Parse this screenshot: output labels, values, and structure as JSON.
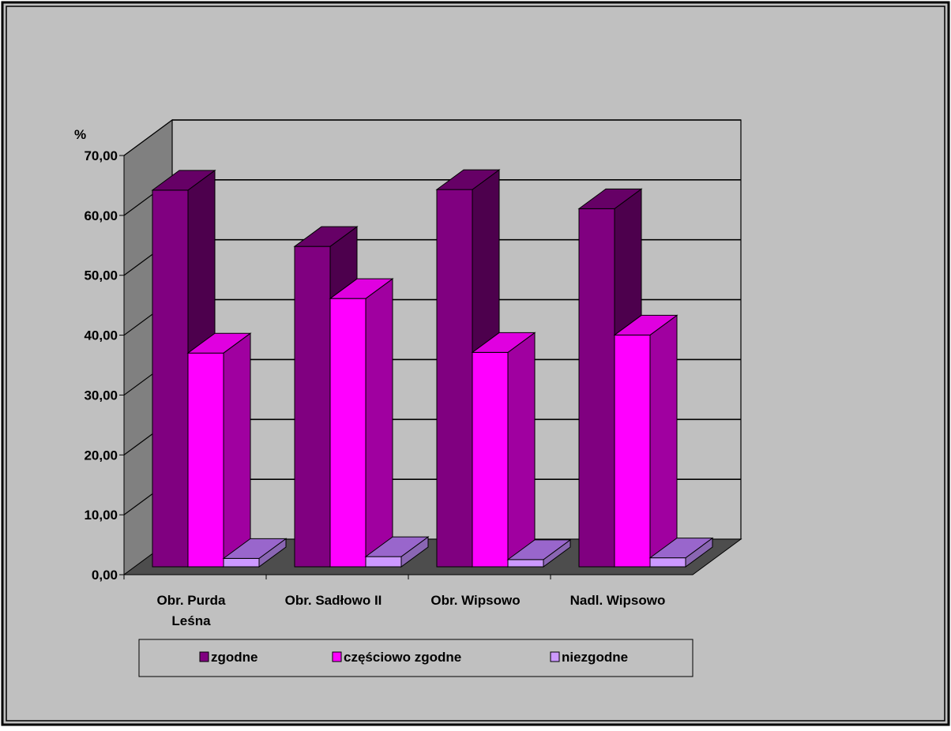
{
  "chart_data": {
    "type": "bar",
    "title": "",
    "ylabel": "%",
    "xlabel": "",
    "ylim": [
      0,
      70
    ],
    "yticks": [
      "0,00",
      "10,00",
      "20,00",
      "30,00",
      "40,00",
      "50,00",
      "60,00",
      "70,00"
    ],
    "categories": [
      [
        "Obr. Purda",
        "Leśna"
      ],
      [
        "Obr. Sadłowo II"
      ],
      [
        "Obr. Wipsowo"
      ],
      [
        "Nadl. Wipsowo"
      ]
    ],
    "series": [
      {
        "name": "zgodne",
        "values": [
          62.9,
          53.5,
          63.0,
          59.8
        ]
      },
      {
        "name": "częściowo zgodne",
        "values": [
          35.7,
          44.8,
          35.8,
          38.7
        ]
      },
      {
        "name": "niezgodne",
        "values": [
          1.4,
          1.7,
          1.2,
          1.5
        ]
      }
    ],
    "grid": true,
    "legend_position": "bottom",
    "projection": "3d-clustered",
    "colors": {
      "background": "#c0c0c0",
      "wall": "#808080",
      "floor": "#4d4d4d",
      "series": [
        {
          "front": "#800080",
          "side": "#4d004d",
          "top": "#660066"
        },
        {
          "front": "#ff00ff",
          "side": "#a000a0",
          "top": "#e000e0"
        },
        {
          "front": "#cc99ff",
          "side": "#8a66b3",
          "top": "#9966cc"
        }
      ]
    }
  }
}
